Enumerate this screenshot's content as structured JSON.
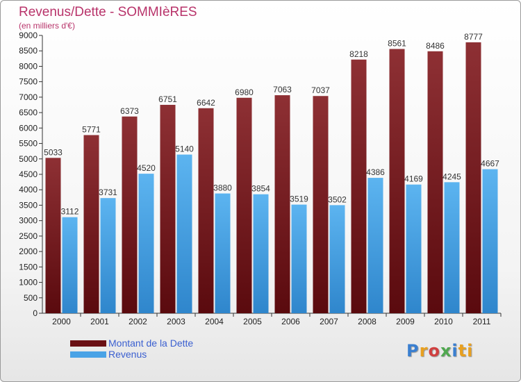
{
  "header": {
    "title": "Revenus/Dette - SOMMIèRES",
    "subtitle": "(en milliers d'€)"
  },
  "chart_data": {
    "type": "bar",
    "categories": [
      "2000",
      "2001",
      "2002",
      "2003",
      "2004",
      "2005",
      "2006",
      "2007",
      "2008",
      "2009",
      "2010",
      "2011"
    ],
    "series": [
      {
        "name": "Montant de la Dette",
        "color": "#7a1a1e",
        "values": [
          5033,
          5771,
          6373,
          6751,
          6642,
          6980,
          7063,
          7037,
          8218,
          8561,
          8486,
          8777
        ]
      },
      {
        "name": "Revenus",
        "color": "#4aa3e6",
        "values": [
          3112,
          3731,
          4520,
          5140,
          3880,
          3854,
          3519,
          3502,
          4386,
          4169,
          4245,
          4667
        ]
      }
    ],
    "ylim": [
      0,
      9000
    ],
    "ytick_step": 500,
    "grid": false,
    "legend_position": "bottom-left"
  },
  "legend": {
    "items": [
      {
        "label": "Montant de la Dette",
        "color": "#7a1a1e"
      },
      {
        "label": "Revenus",
        "color": "#4aa3e6"
      }
    ]
  },
  "brand": {
    "letters": [
      "P",
      "r",
      "o",
      "x",
      "i",
      "t",
      "i"
    ]
  }
}
